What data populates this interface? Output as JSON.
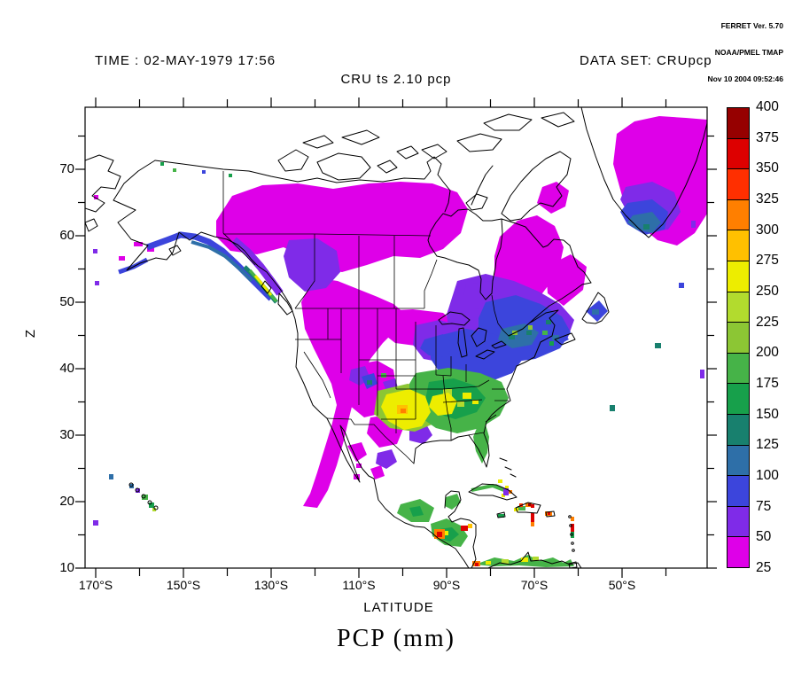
{
  "branding": {
    "line1": "FERRET Ver. 5.70",
    "line2": "NOAA/PMEL TMAP",
    "line3": "Nov 10 2004 09:52:46"
  },
  "header": {
    "time_label": "TIME : 02-MAY-1979 17:56",
    "dataset_label": "DATA SET: CRUpcp"
  },
  "plot": {
    "title": "CRU ts 2.10 pcp",
    "bottom_title": "PCP (mm)",
    "x_axis_label": "LATITUDE",
    "y_axis_label": "Z"
  },
  "axes": {
    "x_ticks": [
      "170°S",
      "150°S",
      "130°S",
      "110°S",
      "90°S",
      "70°S",
      "50°S"
    ],
    "y_ticks": [
      "70",
      "60",
      "50",
      "40",
      "30",
      "20",
      "10"
    ]
  },
  "colorbar": {
    "labels_top_to_bottom": [
      "400",
      "375",
      "350",
      "325",
      "300",
      "275",
      "250",
      "225",
      "200",
      "175",
      "150",
      "125",
      "100",
      "75",
      "50",
      "25"
    ],
    "cells_top_to_bottom": [
      "#960000",
      "#DD0000",
      "#FF2F00",
      "#FF7F00",
      "#FFC000",
      "#EDED00",
      "#B2DB2E",
      "#8CC634",
      "#46B348",
      "#17A04B",
      "#18806E",
      "#2E6FA8",
      "#3C45DC",
      "#7F2BE8",
      "#DE00E8"
    ]
  },
  "chart_data": {
    "type": "heatmap",
    "title": "CRU ts 2.10 pcp",
    "variable": "PCP (mm)",
    "time": "02-MAY-1979 17:56",
    "dataset": "CRUpcp",
    "xlabel": "LATITUDE",
    "ylabel": "Z",
    "x_tick_labels": [
      "170°S",
      "150°S",
      "130°S",
      "110°S",
      "90°S",
      "70°S",
      "50°S"
    ],
    "y_tick_labels": [
      70,
      60,
      50,
      40,
      30,
      20,
      10
    ],
    "y_range_shown": [
      10,
      79
    ],
    "grid": false,
    "legend_position": "right colorbar",
    "levels_mm": [
      25,
      50,
      75,
      100,
      125,
      150,
      175,
      200,
      225,
      250,
      275,
      300,
      325,
      350,
      375,
      400
    ],
    "palette_low_to_high": [
      "#DE00E8",
      "#7F2BE8",
      "#3C45DC",
      "#2E6FA8",
      "#18806E",
      "#17A04B",
      "#46B348",
      "#8CC634",
      "#B2DB2E",
      "#EDED00",
      "#FFC000",
      "#FF7F00",
      "#FF2F00",
      "#DD0000",
      "#960000"
    ],
    "region": "North America (map outline with coastlines and state/province borders)",
    "field_readings": [
      {
        "area": "Yukon / NWT / Keewatin and band around Hudson Bay",
        "value_mm": "25-50"
      },
      {
        "area": "Rocky Mountain corridor from BC interior to New Mexico",
        "value_mm": "25-75"
      },
      {
        "area": "Northern BC / Alberta",
        "value_mm": "50-100"
      },
      {
        "area": "Quebec / Ontario / Maritimes",
        "value_mm": "50-150 with spots 175-225"
      },
      {
        "area": "Eastern US (Midwest to Northeast)",
        "value_mm": "75-125"
      },
      {
        "area": "US Southeast (TX-OK through GA, Florida)",
        "value_mm": "150-300, yellow cores 250-300"
      },
      {
        "area": "Pacific Northwest coastal strip (SE Alaska / BC)",
        "value_mm": "75-275 banded"
      },
      {
        "area": "Southern Greenland",
        "value_mm": "25-150 gradient toward tip"
      },
      {
        "area": "Central America / Caribbean islands",
        "value_mm": "150-400 local red maxima"
      },
      {
        "area": "Hawaii",
        "value_mm": "50-175 island spots"
      },
      {
        "area": "California, central Plains, interior Alaska, high Arctic, oceans",
        "value_mm": "below 25 (unshaded)"
      }
    ]
  }
}
